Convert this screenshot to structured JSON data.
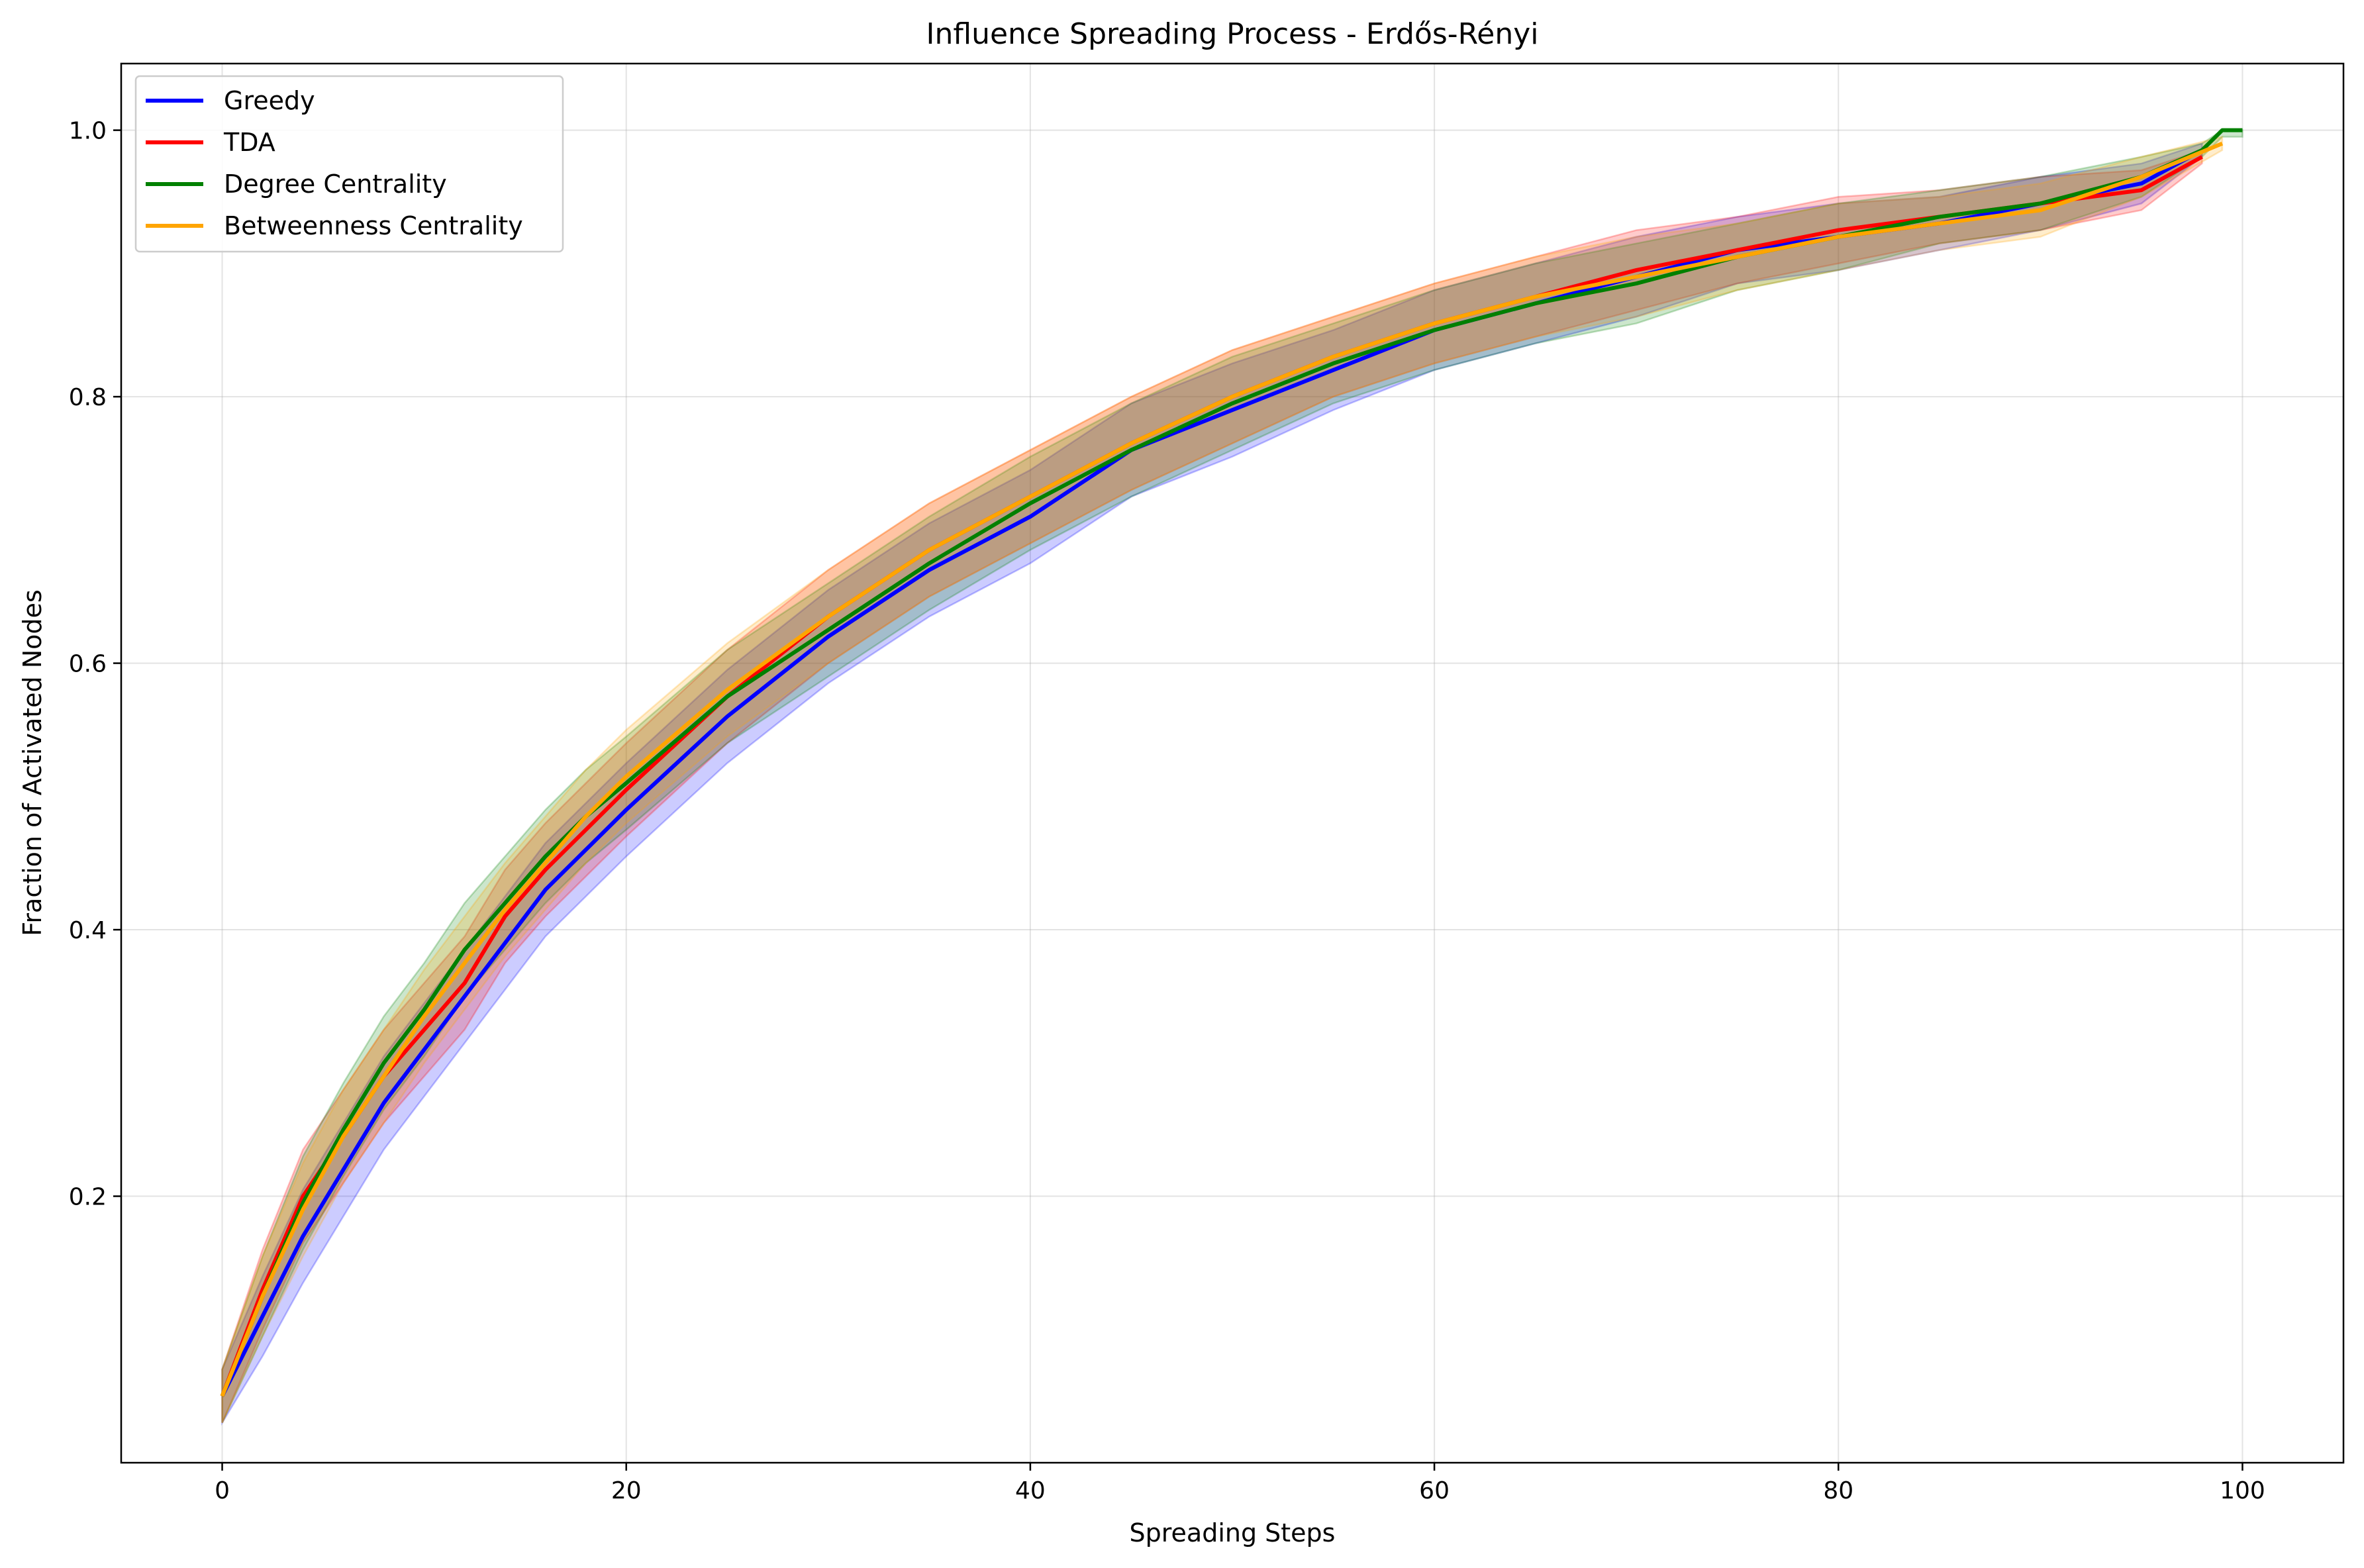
{
  "chart_data": {
    "type": "line",
    "title": "Influence Spreading Process - Erdős-Rényi",
    "xlabel": "Spreading Steps",
    "ylabel": "Fraction of Activated Nodes",
    "xlim": [
      -5,
      105
    ],
    "ylim": [
      0,
      1.05
    ],
    "xticks": [
      0,
      20,
      40,
      60,
      80,
      100
    ],
    "yticks": [
      0.2,
      0.4,
      0.6,
      0.8,
      1.0
    ],
    "xtick_labels": [
      "0",
      "20",
      "40",
      "60",
      "80",
      "100"
    ],
    "ytick_labels": [
      "0.2",
      "0.4",
      "0.6",
      "0.8",
      "1.0"
    ],
    "grid": true,
    "legend_position": "top-left",
    "series": [
      {
        "name": "Greedy",
        "color": "#0000ff",
        "x": [
          0,
          2,
          4,
          6,
          8,
          10,
          12,
          14,
          16,
          18,
          20,
          25,
          30,
          35,
          40,
          45,
          50,
          55,
          60,
          65,
          70,
          75,
          80,
          85,
          90,
          95,
          98
        ],
        "y": [
          0.05,
          0.11,
          0.17,
          0.22,
          0.27,
          0.31,
          0.35,
          0.39,
          0.43,
          0.46,
          0.49,
          0.56,
          0.62,
          0.67,
          0.71,
          0.76,
          0.79,
          0.82,
          0.85,
          0.87,
          0.89,
          0.91,
          0.92,
          0.93,
          0.945,
          0.96,
          0.985
        ],
        "band": [
          0.02,
          0.03,
          0.035,
          0.035,
          0.035,
          0.035,
          0.035,
          0.035,
          0.035,
          0.035,
          0.035,
          0.035,
          0.035,
          0.035,
          0.035,
          0.035,
          0.035,
          0.03,
          0.03,
          0.03,
          0.03,
          0.025,
          0.025,
          0.02,
          0.02,
          0.015,
          0.005
        ]
      },
      {
        "name": "TDA",
        "color": "#ff0000",
        "x": [
          0,
          2,
          4,
          6,
          8,
          10,
          12,
          14,
          16,
          18,
          20,
          25,
          30,
          35,
          40,
          45,
          50,
          55,
          60,
          65,
          70,
          75,
          80,
          85,
          90,
          95,
          98
        ],
        "y": [
          0.05,
          0.13,
          0.2,
          0.245,
          0.29,
          0.325,
          0.36,
          0.41,
          0.445,
          0.475,
          0.505,
          0.575,
          0.635,
          0.685,
          0.725,
          0.765,
          0.8,
          0.83,
          0.855,
          0.875,
          0.895,
          0.91,
          0.925,
          0.935,
          0.945,
          0.955,
          0.98
        ]
      },
      {
        "name": "Degree Centrality",
        "color": "#008000",
        "x": [
          0,
          2,
          4,
          6,
          8,
          10,
          12,
          14,
          16,
          18,
          20,
          25,
          30,
          35,
          40,
          45,
          50,
          55,
          60,
          65,
          70,
          75,
          80,
          85,
          90,
          95,
          98,
          99,
          100
        ],
        "y": [
          0.05,
          0.125,
          0.195,
          0.25,
          0.3,
          0.34,
          0.385,
          0.42,
          0.455,
          0.485,
          0.51,
          0.575,
          0.625,
          0.675,
          0.72,
          0.76,
          0.795,
          0.825,
          0.85,
          0.87,
          0.885,
          0.905,
          0.92,
          0.935,
          0.945,
          0.965,
          0.985,
          1.0,
          1.0
        ]
      },
      {
        "name": "Betweenness Centrality",
        "color": "#ffa500",
        "x": [
          0,
          2,
          4,
          6,
          8,
          10,
          12,
          14,
          16,
          18,
          20,
          25,
          30,
          35,
          40,
          45,
          50,
          55,
          60,
          65,
          70,
          75,
          80,
          85,
          90,
          95,
          99
        ],
        "y": [
          0.05,
          0.125,
          0.19,
          0.245,
          0.29,
          0.335,
          0.375,
          0.415,
          0.45,
          0.485,
          0.515,
          0.58,
          0.635,
          0.685,
          0.725,
          0.765,
          0.8,
          0.83,
          0.855,
          0.875,
          0.89,
          0.905,
          0.92,
          0.93,
          0.94,
          0.965,
          0.99
        ]
      }
    ]
  }
}
